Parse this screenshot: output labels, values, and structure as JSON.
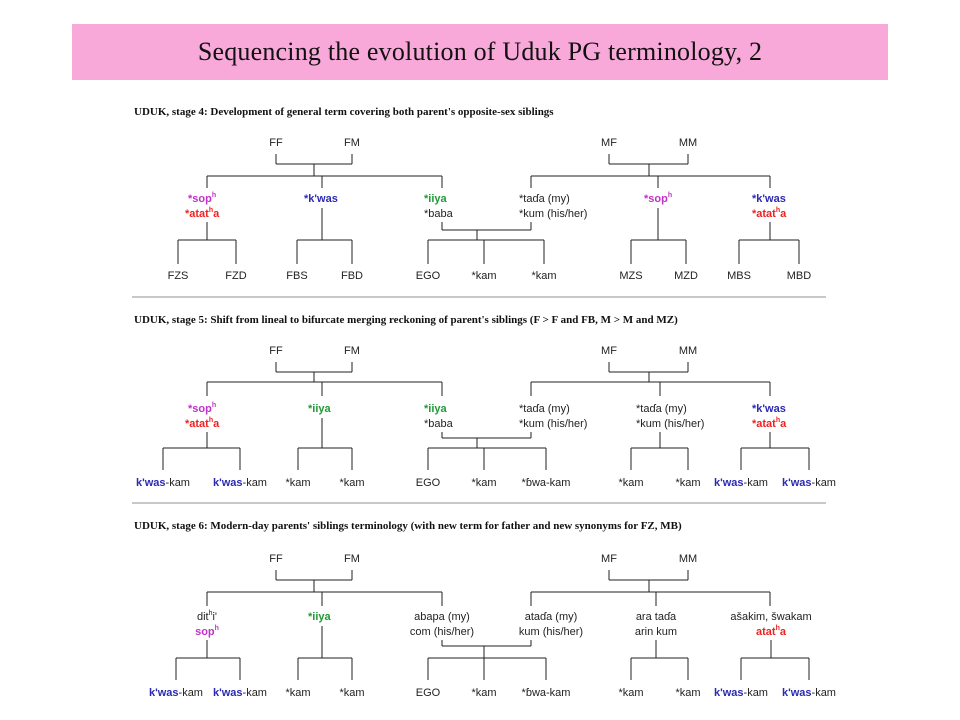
{
  "title": "Sequencing the evolution of Uduk PG terminology, 2",
  "stages": [
    {
      "heading": "UDUK, stage 4:  Development of general term covering both parent's opposite-sex siblings",
      "roots": [
        "FF",
        "FM",
        "MF",
        "MM"
      ],
      "mid": [
        {
          "l1": "*sop",
          "l1_sup": "h",
          "l2": "*atat",
          "l2_sup": "h",
          "l2_tail": "a"
        },
        {
          "l1": "*k'was"
        },
        {
          "l1": "*iiya",
          "l2": "*baba"
        },
        {
          "l1": "*taɗa (my)",
          "l2": "*kum (his/her)"
        },
        {
          "l1": "*sop",
          "l1_sup": "h"
        },
        {
          "l1": "*k'was",
          "l2": "*atat",
          "l2_sup": "h",
          "l2_tail": "a"
        }
      ],
      "leaves": [
        [
          "FZS",
          "FZD"
        ],
        [
          "FBS",
          "FBD"
        ],
        [
          "EGO",
          "*kam",
          "*kam"
        ],
        [
          "MZS",
          "MZD"
        ],
        [
          "MBS",
          "MBD"
        ]
      ]
    },
    {
      "heading": "UDUK, stage 5:  Shift from lineal to bifurcate merging reckoning of parent's siblings (F > F and FB, M > M and MZ)",
      "roots": [
        "FF",
        "FM",
        "MF",
        "MM"
      ],
      "mid": [
        {
          "l1": "*sop",
          "l1_sup": "h",
          "l2": "*atat",
          "l2_sup": "h",
          "l2_tail": "a"
        },
        {
          "l1": "*iiya"
        },
        {
          "l1": "*iiya",
          "l2": "*baba"
        },
        {
          "l1": "*taɗa (my)",
          "l2": "*kum (his/her)"
        },
        {
          "l1": "*taɗa (my)",
          "l2": "*kum (his/her)"
        },
        {
          "l1": "*k'was",
          "l2": "*atat",
          "l2_sup": "h",
          "l2_tail": "a"
        }
      ],
      "leaves": [
        [
          "k'was",
          "-kam",
          "k'was",
          "-kam"
        ],
        [
          "*kam",
          "*kam"
        ],
        [
          "EGO",
          "*kam",
          "*ɓwa-kam"
        ],
        [
          "*kam",
          "*kam"
        ],
        [
          "k'was",
          "-kam",
          "k'was",
          "-kam"
        ]
      ]
    },
    {
      "heading": "UDUK, stage 6:  Modern-day parents' siblings terminology (with new term for father and new synonyms for FZ, MB)",
      "roots": [
        "FF",
        "FM",
        "MF",
        "MM"
      ],
      "mid": [
        {
          "l1": "dit",
          "l1_sup": "h",
          "l1_tail": "i'",
          "l2": "sop",
          "l2_sup": "h"
        },
        {
          "l1": "*iiya"
        },
        {
          "l1": "abapa (my)",
          "l2": "com (his/her)"
        },
        {
          "l1": "ataɗa (my)",
          "l2": "kum (his/her)"
        },
        {
          "l1": "ara taɗa",
          "l2": "arin kum"
        },
        {
          "l1": "ašakim, šwakam",
          "l2": "atat",
          "l2_sup": "h",
          "l2_tail": "a"
        }
      ],
      "leaves": [
        [
          "k'was",
          "-kam",
          "k'was",
          "-kam"
        ],
        [
          "*kam",
          "*kam"
        ],
        [
          "EGO",
          "*kam",
          "*ɓwa-kam"
        ],
        [
          "*kam",
          "*kam"
        ],
        [
          "k'was",
          "-kam",
          "k'was",
          "-kam"
        ]
      ]
    }
  ]
}
